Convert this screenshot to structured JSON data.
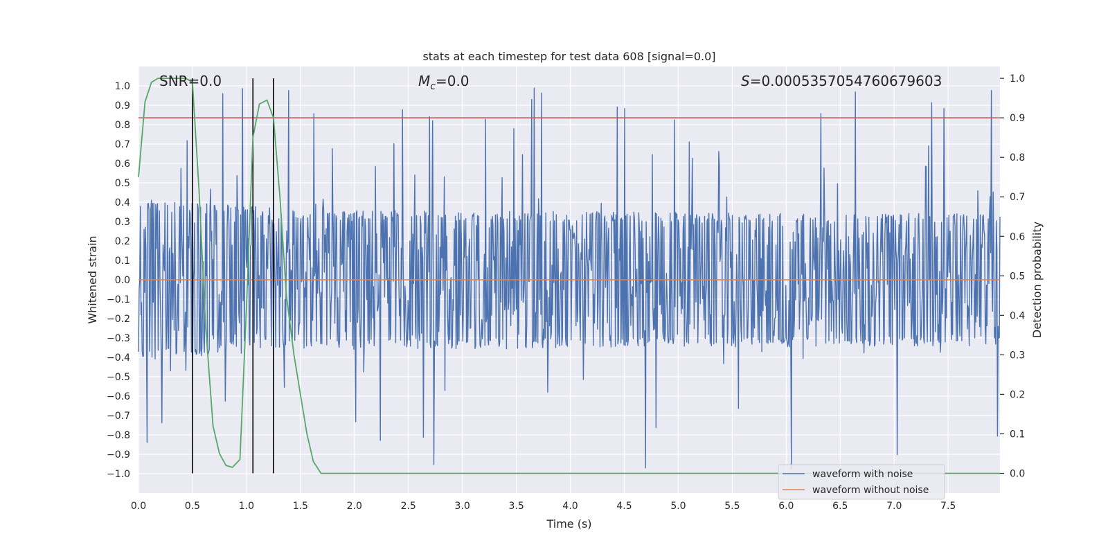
{
  "chart_data": {
    "type": "line",
    "title": "stats at each timestep for test data 608 [signal=0.0]",
    "xlabel": "Time (s)",
    "ylabel": "Whitened strain",
    "ylabel_right": "Detection probability",
    "xlim": [
      0.0,
      7.98
    ],
    "ylim": [
      -1.1,
      1.1
    ],
    "ylim_right": [
      -0.05,
      1.03
    ],
    "xticks": [
      0.0,
      0.5,
      1.0,
      1.5,
      2.0,
      2.5,
      3.0,
      3.5,
      4.0,
      4.5,
      5.0,
      5.5,
      6.0,
      6.5,
      7.0,
      7.5
    ],
    "xtick_labels": [
      "0.0",
      "0.5",
      "1.0",
      "1.5",
      "2.0",
      "2.5",
      "3.0",
      "3.5",
      "4.0",
      "4.5",
      "5.0",
      "5.5",
      "6.0",
      "6.5",
      "7.0",
      "7.5"
    ],
    "yticks": [
      1.0,
      0.9,
      0.8,
      0.7,
      0.6,
      0.5,
      0.4,
      0.3,
      0.2,
      0.1,
      0.0,
      -0.1,
      -0.2,
      -0.3,
      -0.4,
      -0.5,
      -0.6,
      -0.7,
      -0.8,
      -0.9,
      -1.0
    ],
    "ytick_labels": [
      "1.0",
      "0.9",
      "0.8",
      "0.7",
      "0.6",
      "0.5",
      "0.4",
      "0.3",
      "0.2",
      "0.1",
      "0.0",
      "−0.1",
      "−0.2",
      "−0.3",
      "−0.4",
      "−0.5",
      "−0.6",
      "−0.7",
      "−0.8",
      "−0.9",
      "−1.0"
    ],
    "yticks_right": [
      1.0,
      0.9,
      0.8,
      0.7,
      0.6,
      0.5,
      0.4,
      0.3,
      0.2,
      0.1,
      0.0
    ],
    "ytick_labels_right": [
      "1.0",
      "0.9",
      "0.8",
      "0.7",
      "0.6",
      "0.5",
      "0.4",
      "0.3",
      "0.2",
      "0.1",
      "0.0"
    ],
    "annotations": {
      "snr": "SNR=0.0",
      "mc_symbol": "M",
      "mc_sub": "c",
      "mc_value": "=0.0",
      "s_symbol": "S",
      "s_value": "=0.0005357054760679603"
    },
    "threshold": 0.9,
    "vlines_x": [
      0.5,
      1.06,
      1.25
    ],
    "series": [
      {
        "name": "waveform with noise",
        "color": "#4c72b0",
        "noise_envelope": {
          "t": [
            0.0,
            1.5,
            7.98
          ],
          "amp": [
            0.42,
            0.36,
            0.34
          ]
        },
        "peak_max": 0.99,
        "peak_min": -0.99
      },
      {
        "name": "waveform without noise",
        "color": "#dd8452",
        "value": 0.0
      },
      {
        "name": "detection probability",
        "color": "#55a868",
        "x": [
          0.0,
          0.06,
          0.12,
          0.18,
          0.25,
          0.31,
          0.37,
          0.44,
          0.5,
          0.56,
          0.62,
          0.69,
          0.75,
          0.81,
          0.87,
          0.94,
          1.0,
          1.06,
          1.12,
          1.19,
          1.25,
          1.31,
          1.37,
          1.44,
          1.5,
          1.56,
          1.62,
          1.69,
          1.75,
          7.98
        ],
        "values": [
          0.75,
          0.94,
          0.99,
          1.0,
          1.0,
          1.0,
          1.0,
          1.0,
          0.99,
          0.72,
          0.38,
          0.12,
          0.05,
          0.02,
          0.015,
          0.035,
          0.42,
          0.85,
          0.935,
          0.945,
          0.9,
          0.7,
          0.45,
          0.3,
          0.2,
          0.1,
          0.03,
          0.0,
          0.0,
          0.0
        ]
      }
    ],
    "legend": {
      "placement": "bottom-right",
      "entries": [
        "waveform with noise",
        "waveform without noise"
      ]
    },
    "colors": {
      "plot_bg": "#eaeaf2",
      "grid": "#ffffff",
      "threshold": "#c44e52",
      "vlines": "#000000",
      "text": "#262626"
    }
  }
}
